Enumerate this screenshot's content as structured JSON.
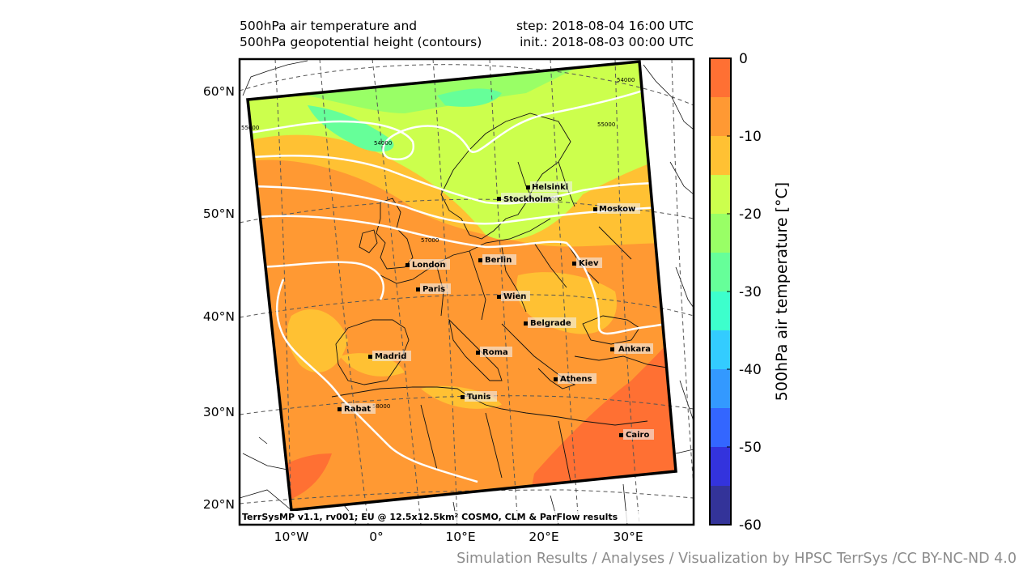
{
  "title": {
    "left_line1": "500hPa air temperature and",
    "left_line2": "500hPa geopotential height (contours)",
    "right_line1": "step: 2018-08-04 16:00 UTC",
    "right_line2": "init.: 2018-08-03 00:00 UTC"
  },
  "lat_ticks": [
    "60°N",
    "50°N",
    "40°N",
    "30°N",
    "20°N"
  ],
  "lon_ticks": [
    "10°W",
    "0°",
    "10°E",
    "20°E",
    "30°E"
  ],
  "colorbar": {
    "label": "500hPa air temperature [°C]",
    "ticks": [
      "0",
      "-10",
      "-20",
      "-30",
      "-40",
      "-50",
      "-60"
    ],
    "levels": [
      {
        "range": [
          -5,
          0
        ],
        "color": "#ff7033"
      },
      {
        "range": [
          -10,
          -5
        ],
        "color": "#ff9933"
      },
      {
        "range": [
          -15,
          -10
        ],
        "color": "#ffc133"
      },
      {
        "range": [
          -20,
          -15
        ],
        "color": "#ccff4d"
      },
      {
        "range": [
          -25,
          -20
        ],
        "color": "#99ff66"
      },
      {
        "range": [
          -30,
          -25
        ],
        "color": "#66ff99"
      },
      {
        "range": [
          -35,
          -30
        ],
        "color": "#3dffcc"
      },
      {
        "range": [
          -40,
          -35
        ],
        "color": "#33ccff"
      },
      {
        "range": [
          -45,
          -40
        ],
        "color": "#3399ff"
      },
      {
        "range": [
          -50,
          -45
        ],
        "color": "#3366ff"
      },
      {
        "range": [
          -55,
          -50
        ],
        "color": "#3333dd"
      },
      {
        "range": [
          -60,
          -55
        ],
        "color": "#333399"
      }
    ]
  },
  "cities": [
    {
      "name": "Helsinki"
    },
    {
      "name": "Stockholm"
    },
    {
      "name": "Moskow"
    },
    {
      "name": "London"
    },
    {
      "name": "Berlin"
    },
    {
      "name": "Kiev"
    },
    {
      "name": "Paris"
    },
    {
      "name": "Wien"
    },
    {
      "name": "Belgrade"
    },
    {
      "name": "Ankara"
    },
    {
      "name": "Madrid"
    },
    {
      "name": "Roma"
    },
    {
      "name": "Athens"
    },
    {
      "name": "Tunis"
    },
    {
      "name": "Rabat"
    },
    {
      "name": "Cairo"
    }
  ],
  "contour_labels": [
    "54000",
    "55000",
    "55000",
    "54000",
    "56000",
    "57000",
    "58000"
  ],
  "credit": "TerrSysMP v1.1, rv001; EU @ 12.5x12.5km² COSMO, CLM & ParFlow results",
  "footer": "Simulation Results / Analyses / Visualization by HPSC TerrSys /CC BY-NC-ND 4.0"
}
